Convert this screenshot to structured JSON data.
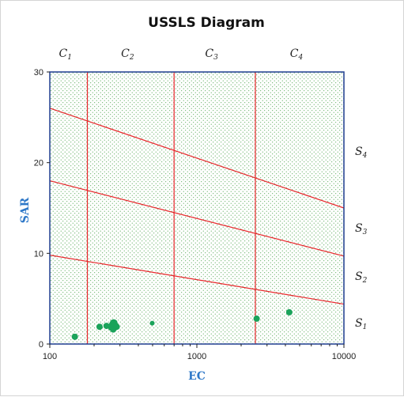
{
  "chart_data": {
    "type": "scatter",
    "title": "USSLS Diagram",
    "xlabel": "EC",
    "ylabel": "SAR",
    "xscale": "log",
    "xlim": [
      100,
      10000
    ],
    "ylim": [
      0,
      30
    ],
    "x_ticks": [
      "100",
      "1000",
      "10000"
    ],
    "y_ticks": [
      "0",
      "10",
      "20",
      "30"
    ],
    "grid": false,
    "background": "dotted",
    "salinity_classes": [
      {
        "base": "C",
        "sub": "1"
      },
      {
        "base": "C",
        "sub": "2"
      },
      {
        "base": "C",
        "sub": "3"
      },
      {
        "base": "C",
        "sub": "4"
      }
    ],
    "sodium_classes": [
      {
        "base": "S",
        "sub": "4"
      },
      {
        "base": "S",
        "sub": "3"
      },
      {
        "base": "S",
        "sub": "2"
      },
      {
        "base": "S",
        "sub": "1"
      }
    ],
    "class_boundaries_ec": [
      180,
      700,
      2500
    ],
    "sodium_boundary_lines": [
      {
        "x": [
          100,
          10000
        ],
        "y": [
          9.8,
          4.4
        ]
      },
      {
        "x": [
          100,
          10000
        ],
        "y": [
          18.0,
          9.7
        ]
      },
      {
        "x": [
          100,
          10000
        ],
        "y": [
          26.0,
          15.0
        ]
      }
    ],
    "points": [
      {
        "x": 148,
        "y": 0.8,
        "size": 4
      },
      {
        "x": 218,
        "y": 1.9,
        "size": 4
      },
      {
        "x": 243,
        "y": 2.0,
        "size": 4
      },
      {
        "x": 262,
        "y": 1.8,
        "size": 4
      },
      {
        "x": 268,
        "y": 2.1,
        "size": 5
      },
      {
        "x": 272,
        "y": 2.3,
        "size": 5
      },
      {
        "x": 276,
        "y": 2.0,
        "size": 5
      },
      {
        "x": 285,
        "y": 1.9,
        "size": 4
      },
      {
        "x": 270,
        "y": 1.6,
        "size": 4
      },
      {
        "x": 497,
        "y": 2.3,
        "size": 3
      },
      {
        "x": 2550,
        "y": 2.8,
        "size": 4
      },
      {
        "x": 4250,
        "y": 3.5,
        "size": 4
      }
    ],
    "colors": {
      "boundary": "#e8262a",
      "point": "#1aa35a",
      "axis_label": "#2e78c8",
      "plot_border": "#1f3d8f",
      "dots": "#3c9a3c"
    }
  }
}
